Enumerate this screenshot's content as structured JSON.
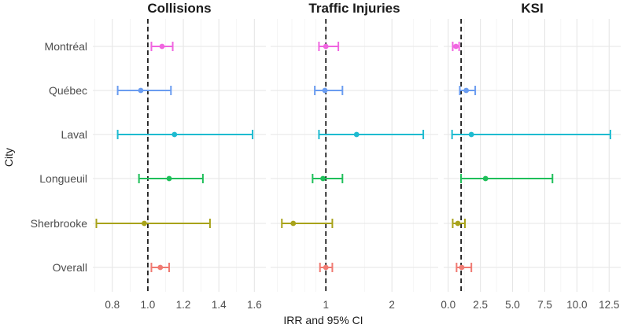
{
  "chart_data": {
    "type": "forest",
    "xlabel": "IRR and 95% CI",
    "ylabel": "City",
    "categories": [
      "Montréal",
      "Québec",
      "Laval",
      "Longueuil",
      "Sherbrooke",
      "Overall"
    ],
    "colors": {
      "Montréal": "#f066e0",
      "Québec": "#6a9cf0",
      "Laval": "#1ebbd0",
      "Longueuil": "#1fbf5a",
      "Sherbrooke": "#a8a31a",
      "Overall": "#f07a72"
    },
    "reference_value": 1,
    "panels": [
      {
        "title": "Collisions",
        "scale": "linear",
        "xlim": [
          0.69,
          1.665
        ],
        "ticks": [
          0.8,
          1.0,
          1.2,
          1.4,
          1.6
        ],
        "tick_labels": [
          "0.8",
          "1.0",
          "1.2",
          "1.4",
          "1.6"
        ],
        "estimates": [
          {
            "city": "Montréal",
            "irr": 1.08,
            "lower": 1.02,
            "upper": 1.14
          },
          {
            "city": "Québec",
            "irr": 0.96,
            "lower": 0.83,
            "upper": 1.13
          },
          {
            "city": "Laval",
            "irr": 1.15,
            "lower": 0.83,
            "upper": 1.59
          },
          {
            "city": "Longueuil",
            "irr": 1.12,
            "lower": 0.95,
            "upper": 1.31
          },
          {
            "city": "Sherbrooke",
            "irr": 0.98,
            "lower": 0.71,
            "upper": 1.35
          },
          {
            "city": "Overall",
            "irr": 1.07,
            "lower": 1.02,
            "upper": 1.12
          }
        ]
      },
      {
        "title": "Traffic Injuries",
        "scale": "log",
        "xlim": [
          0.56,
          3.25
        ],
        "ticks": [
          1,
          2
        ],
        "tick_labels": [
          "1",
          "2"
        ],
        "estimates": [
          {
            "city": "Montréal",
            "irr": 1.0,
            "lower": 0.93,
            "upper": 1.14
          },
          {
            "city": "Québec",
            "irr": 0.99,
            "lower": 0.89,
            "upper": 1.19
          },
          {
            "city": "Laval",
            "irr": 1.38,
            "lower": 0.93,
            "upper": 2.78
          },
          {
            "city": "Longueuil",
            "irr": 0.97,
            "lower": 0.87,
            "upper": 1.19
          },
          {
            "city": "Sherbrooke",
            "irr": 0.71,
            "lower": 0.63,
            "upper": 1.07
          },
          {
            "city": "Overall",
            "irr": 1.0,
            "lower": 0.94,
            "upper": 1.07
          }
        ]
      },
      {
        "title": "KSI",
        "scale": "linear",
        "xlim": [
          -0.35,
          13.4
        ],
        "ticks": [
          0,
          2.5,
          5,
          7.5,
          10,
          12.5
        ],
        "tick_labels": [
          "0.0",
          "2.5",
          "5.0",
          "7.5",
          "10.0",
          "12.5"
        ],
        "estimates": [
          {
            "city": "Montréal",
            "irr": 0.6,
            "lower": 0.35,
            "upper": 0.85
          },
          {
            "city": "Québec",
            "irr": 1.4,
            "lower": 0.9,
            "upper": 2.1
          },
          {
            "city": "Laval",
            "irr": 1.8,
            "lower": 0.3,
            "upper": 12.6
          },
          {
            "city": "Longueuil",
            "irr": 2.9,
            "lower": 1.0,
            "upper": 8.1
          },
          {
            "city": "Sherbrooke",
            "irr": 0.75,
            "lower": 0.35,
            "upper": 1.3
          },
          {
            "city": "Overall",
            "irr": 1.05,
            "lower": 0.65,
            "upper": 1.8
          }
        ]
      }
    ]
  }
}
